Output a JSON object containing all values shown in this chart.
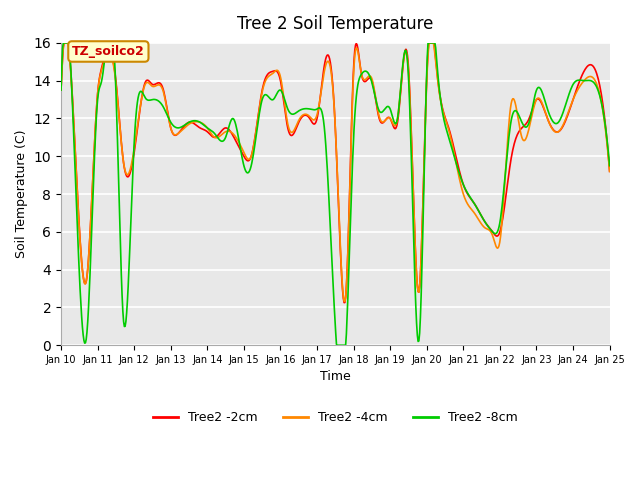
{
  "title": "Tree 2 Soil Temperature",
  "xlabel": "Time",
  "ylabel": "Soil Temperature (C)",
  "ylim": [
    0,
    16
  ],
  "yticks": [
    0,
    2,
    4,
    6,
    8,
    10,
    12,
    14,
    16
  ],
  "bg_color": "#e8e8e8",
  "fig_color": "#ffffff",
  "annotation_text": "TZ_soilco2",
  "annotation_bg": "#ffffcc",
  "annotation_border": "#cc8800",
  "annotation_text_color": "#cc0000",
  "series": {
    "Tree2 -2cm": {
      "color": "#ff0000",
      "lw": 1.2
    },
    "Tree2 -4cm": {
      "color": "#ff8800",
      "lw": 1.2
    },
    "Tree2 -8cm": {
      "color": "#00cc00",
      "lw": 1.2
    }
  },
  "x_day_labels": [
    "Jan 10",
    "Jan 11",
    "Jan 12",
    "Jan 13",
    "Jan 14",
    "Jan 15",
    "Jan 16",
    "Jan 17",
    "Jan 18",
    "Jan 19",
    "Jan 20",
    "Jan 21",
    "Jan 22",
    "Jan 23",
    "Jan 24",
    "Jan 25"
  ],
  "x_day_values": [
    10,
    11,
    12,
    13,
    14,
    15,
    16,
    17,
    18,
    19,
    20,
    21,
    22,
    23,
    24,
    25
  ]
}
